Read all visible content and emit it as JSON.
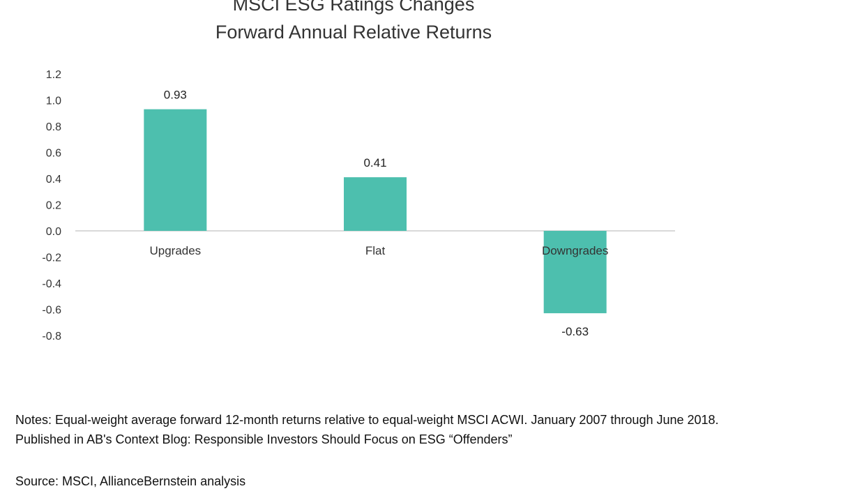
{
  "chart_data": {
    "type": "bar",
    "title_lines": [
      "MSCI ESG Ratings Changes",
      "Forward Annual Relative Returns"
    ],
    "categories": [
      "Upgrades",
      "Flat",
      "Downgrades"
    ],
    "values": [
      0.93,
      0.41,
      -0.63
    ],
    "data_labels": [
      "0.93",
      "0.41",
      "-0.63"
    ],
    "ylim": [
      -0.8,
      1.2
    ],
    "yticks": [
      1.2,
      1.0,
      0.8,
      0.6,
      0.4,
      0.2,
      0.0,
      -0.2,
      -0.4,
      -0.6,
      -0.8
    ],
    "ytick_labels": [
      "1.2",
      "1.0",
      "0.8",
      "0.6",
      "0.4",
      "0.2",
      "0.0",
      "-0.2",
      "-0.4",
      "-0.6",
      "-0.8"
    ],
    "bar_color": "#4dbfae",
    "axis_color": "#d9d9d9",
    "grid": false,
    "legend": "none"
  },
  "notes": {
    "line1": "Notes: Equal-weight average forward 12-month returns relative to equal-weight MSCI ACWI. January 2007 through June 2018.",
    "line2": "Published in AB's Context Blog: Responsible Investors Should Focus on ESG “Offenders”"
  },
  "source": "Source: MSCI, AllianceBernstein analysis"
}
